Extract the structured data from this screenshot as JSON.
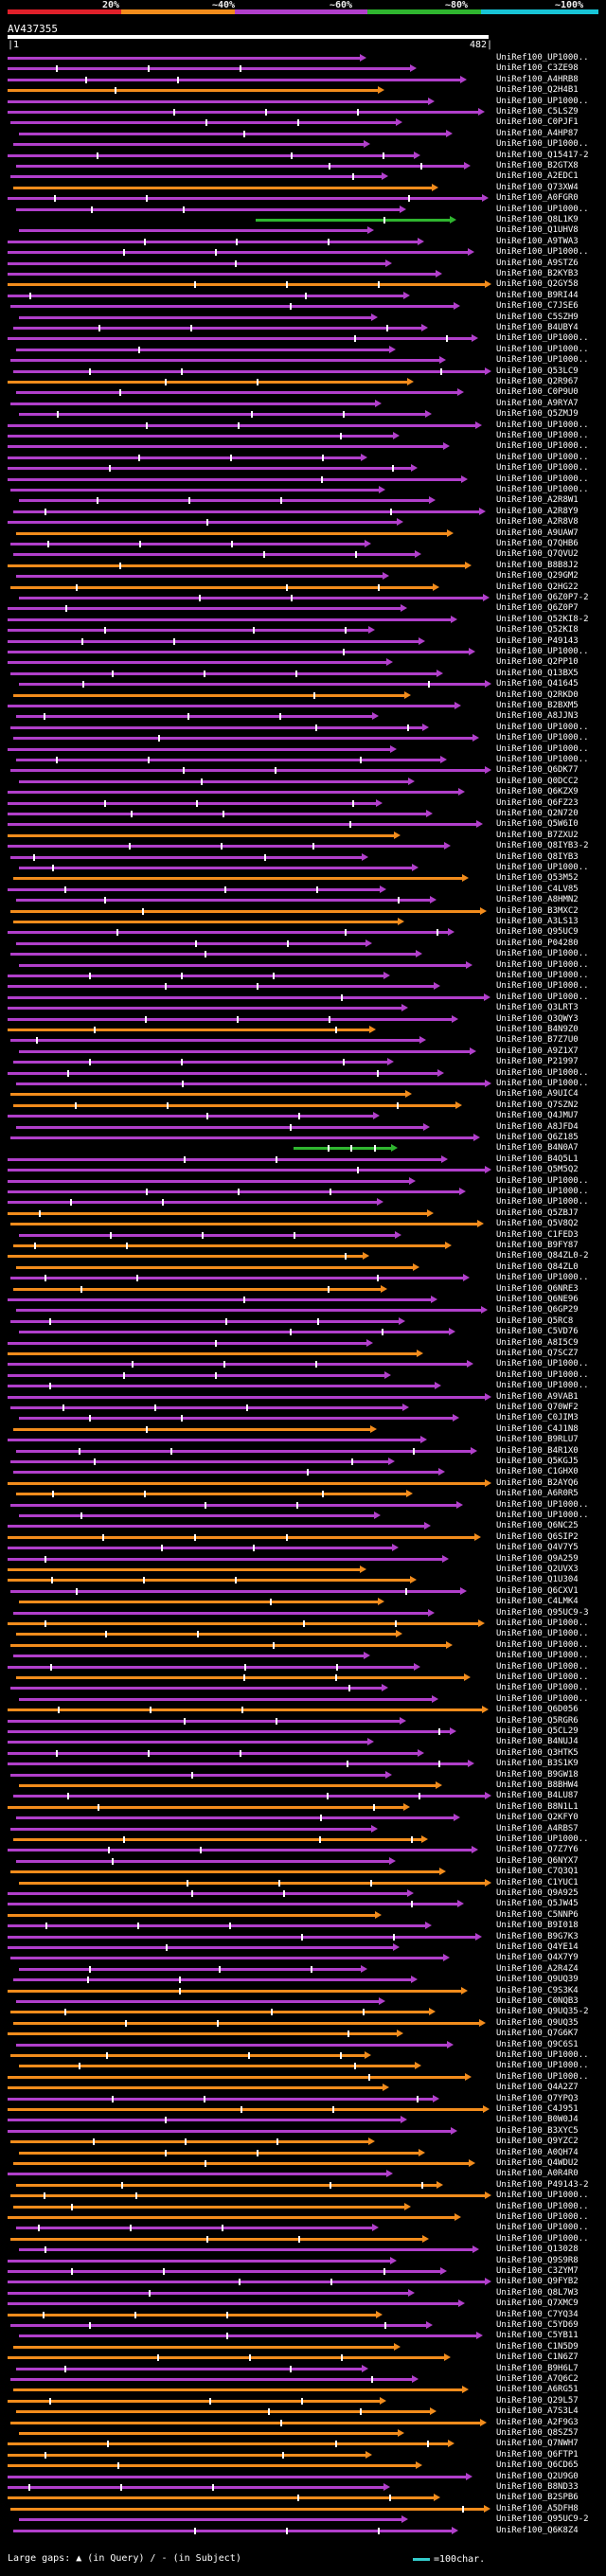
{
  "header": {
    "percent_labels": [
      "20%",
      "~40%",
      "~60%",
      "~80%",
      "~100%"
    ],
    "colors": {
      "red": "#e0202a",
      "orange": "#f28c1c",
      "purple": "#b13fcb",
      "green": "#2fb52f",
      "cyan": "#18c4d6"
    },
    "query_id": "AV437355",
    "coord_start": "|1",
    "coord_end": "482|"
  },
  "hits": [
    {
      "label": "UniRef100_UP1000..",
      "color": "purple"
    },
    {
      "label": "UniRef100_C3ZE98",
      "color": "purple"
    },
    {
      "label": "UniRef100_A4HRB8",
      "color": "purple"
    },
    {
      "label": "UniRef100_Q2H4B1",
      "color": "orange"
    },
    {
      "label": "UniRef100_UP1000..",
      "color": "purple"
    },
    {
      "label": "UniRef100_C5LSZ9",
      "color": "purple"
    },
    {
      "label": "UniRef100_C0PJF1",
      "color": "purple"
    },
    {
      "label": "UniRef100_A4HP87",
      "color": "purple"
    },
    {
      "label": "UniRef100_UP1000..",
      "color": "purple"
    },
    {
      "label": "UniRef100_Q15417-2",
      "color": "purple"
    },
    {
      "label": "UniRef100_B2GTX8",
      "color": "purple"
    },
    {
      "label": "UniRef100_A2EDC1",
      "color": "purple"
    },
    {
      "label": "UniRef100_Q73XW4",
      "color": "orange"
    },
    {
      "label": "UniRef100_A0FGR0",
      "color": "purple"
    },
    {
      "label": "UniRef100_UP1000..",
      "color": "purple"
    },
    {
      "label": "UniRef100_Q8L1K9",
      "color": "green"
    },
    {
      "label": "UniRef100_Q1UHV8",
      "color": "purple"
    },
    {
      "label": "UniRef100_A9TWA3",
      "color": "purple"
    },
    {
      "label": "UniRef100_UP1000..",
      "color": "purple"
    },
    {
      "label": "UniRef100_A9STZ6",
      "color": "purple"
    },
    {
      "label": "UniRef100_B2KYB3",
      "color": "purple"
    },
    {
      "label": "UniRef100_Q2GY58",
      "color": "orange"
    },
    {
      "label": "UniRef100_B9RI44",
      "color": "purple"
    },
    {
      "label": "UniRef100_C7JSE6",
      "color": "purple"
    },
    {
      "label": "UniRef100_C5SZH9",
      "color": "purple"
    },
    {
      "label": "UniRef100_B4UBY4",
      "color": "purple"
    },
    {
      "label": "UniRef100_UP1000..",
      "color": "purple"
    },
    {
      "label": "UniRef100_UP1000..",
      "color": "purple"
    },
    {
      "label": "UniRef100_UP1000..",
      "color": "purple"
    },
    {
      "label": "UniRef100_Q53LC9",
      "color": "purple"
    },
    {
      "label": "UniRef100_Q2R967",
      "color": "orange"
    },
    {
      "label": "UniRef100_C0P9U0",
      "color": "purple"
    },
    {
      "label": "UniRef100_A9RYA7",
      "color": "purple"
    },
    {
      "label": "UniRef100_Q5ZMJ9",
      "color": "purple"
    },
    {
      "label": "UniRef100_UP1000..",
      "color": "purple"
    },
    {
      "label": "UniRef100_UP1000..",
      "color": "purple"
    },
    {
      "label": "UniRef100_UP1000..",
      "color": "purple"
    },
    {
      "label": "UniRef100_UP1000..",
      "color": "purple"
    },
    {
      "label": "UniRef100_UP1000..",
      "color": "purple"
    },
    {
      "label": "UniRef100_UP1000..",
      "color": "purple"
    },
    {
      "label": "UniRef100_UP1000..",
      "color": "purple"
    },
    {
      "label": "UniRef100_A2R8W1",
      "color": "purple"
    },
    {
      "label": "UniRef100_A2R8Y9",
      "color": "purple"
    },
    {
      "label": "UniRef100_A2R8V8",
      "color": "purple"
    },
    {
      "label": "UniRef100_A9UAW7",
      "color": "orange"
    },
    {
      "label": "UniRef100_Q7QHB6",
      "color": "purple"
    },
    {
      "label": "UniRef100_Q7QVU2",
      "color": "purple"
    },
    {
      "label": "UniRef100_B8B8J2",
      "color": "orange"
    },
    {
      "label": "UniRef100_Q29GM2",
      "color": "purple"
    },
    {
      "label": "UniRef100_Q2HG22",
      "color": "orange"
    },
    {
      "label": "UniRef100_Q6Z0P7-2",
      "color": "purple"
    },
    {
      "label": "UniRef100_Q6Z0P7",
      "color": "purple"
    },
    {
      "label": "UniRef100_Q52KI8-2",
      "color": "purple"
    },
    {
      "label": "UniRef100_Q52KI8",
      "color": "purple"
    },
    {
      "label": "UniRef100_P49143",
      "color": "purple"
    },
    {
      "label": "UniRef100_UP1000..",
      "color": "purple"
    },
    {
      "label": "UniRef100_Q2PP10",
      "color": "purple"
    },
    {
      "label": "UniRef100_Q13BX5",
      "color": "purple"
    },
    {
      "label": "UniRef100_Q41645",
      "color": "purple"
    },
    {
      "label": "UniRef100_Q2RKD0",
      "color": "orange"
    },
    {
      "label": "UniRef100_B2BXM5",
      "color": "purple"
    },
    {
      "label": "UniRef100_A8JJN3",
      "color": "purple"
    },
    {
      "label": "UniRef100_UP1000..",
      "color": "purple"
    },
    {
      "label": "UniRef100_UP1000..",
      "color": "purple"
    },
    {
      "label": "UniRef100_UP1000..",
      "color": "purple"
    },
    {
      "label": "UniRef100_UP1000..",
      "color": "purple"
    },
    {
      "label": "UniRef100_Q6DK77",
      "color": "purple"
    },
    {
      "label": "UniRef100_Q0DCC2",
      "color": "purple"
    },
    {
      "label": "UniRef100_Q6KZX9",
      "color": "purple"
    },
    {
      "label": "UniRef100_Q6FZ23",
      "color": "purple"
    },
    {
      "label": "UniRef100_Q2N720",
      "color": "purple"
    },
    {
      "label": "UniRef100_Q5W6I0",
      "color": "purple"
    },
    {
      "label": "UniRef100_B7ZXU2",
      "color": "orange"
    },
    {
      "label": "UniRef100_Q8IYB3-2",
      "color": "purple"
    },
    {
      "label": "UniRef100_Q8IYB3",
      "color": "purple"
    },
    {
      "label": "UniRef100_UP1000..",
      "color": "purple"
    },
    {
      "label": "UniRef100_Q53M52",
      "color": "orange"
    },
    {
      "label": "UniRef100_C4LV85",
      "color": "purple"
    },
    {
      "label": "UniRef100_A8HMN2",
      "color": "purple"
    },
    {
      "label": "UniRef100_B3MXC2",
      "color": "orange"
    },
    {
      "label": "UniRef100_A3LS13",
      "color": "orange"
    },
    {
      "label": "UniRef100_Q95UC9",
      "color": "purple"
    },
    {
      "label": "UniRef100_P04280",
      "color": "purple"
    },
    {
      "label": "UniRef100_UP1000..",
      "color": "purple"
    },
    {
      "label": "UniRef100_UP1000..",
      "color": "purple"
    },
    {
      "label": "UniRef100_UP1000..",
      "color": "purple"
    },
    {
      "label": "UniRef100_UP1000..",
      "color": "purple"
    },
    {
      "label": "UniRef100_UP1000..",
      "color": "purple"
    },
    {
      "label": "UniRef100_Q3LRT3",
      "color": "purple"
    },
    {
      "label": "UniRef100_Q3QWY3",
      "color": "purple"
    },
    {
      "label": "UniRef100_B4N9Z0",
      "color": "orange"
    },
    {
      "label": "UniRef100_B7Z7U0",
      "color": "purple"
    },
    {
      "label": "UniRef100_A9Z1X7",
      "color": "purple"
    },
    {
      "label": "UniRef100_P21997",
      "color": "purple"
    },
    {
      "label": "UniRef100_UP1000..",
      "color": "purple"
    },
    {
      "label": "UniRef100_UP1000..",
      "color": "purple"
    },
    {
      "label": "UniRef100_A9UIC4",
      "color": "orange"
    },
    {
      "label": "UniRef100_Q7SZN2",
      "color": "orange"
    },
    {
      "label": "UniRef100_Q4JMU7",
      "color": "purple"
    },
    {
      "label": "UniRef100_A8JFD4",
      "color": "purple"
    },
    {
      "label": "UniRef100_Q6Z185",
      "color": "purple"
    },
    {
      "label": "UniRef100_B4N0A7",
      "color": "green"
    },
    {
      "label": "UniRef100_B4Q5L1",
      "color": "purple"
    },
    {
      "label": "UniRef100_Q5M5Q2",
      "color": "purple"
    },
    {
      "label": "UniRef100_UP1000..",
      "color": "purple"
    },
    {
      "label": "UniRef100_UP1000..",
      "color": "purple"
    },
    {
      "label": "UniRef100_UP1000..",
      "color": "purple"
    },
    {
      "label": "UniRef100_Q5ZBJ7",
      "color": "orange"
    },
    {
      "label": "UniRef100_Q5V8Q2",
      "color": "orange"
    },
    {
      "label": "UniRef100_C1FED3",
      "color": "purple"
    },
    {
      "label": "UniRef100_B9FY87",
      "color": "orange"
    },
    {
      "label": "UniRef100_Q84ZL0-2",
      "color": "orange"
    },
    {
      "label": "UniRef100_Q84ZL0",
      "color": "orange"
    },
    {
      "label": "UniRef100_UP1000..",
      "color": "purple"
    },
    {
      "label": "UniRef100_Q6NRE3",
      "color": "orange"
    },
    {
      "label": "UniRef100_Q6NE96",
      "color": "purple"
    },
    {
      "label": "UniRef100_Q6GP29",
      "color": "purple"
    },
    {
      "label": "UniRef100_Q5RC8",
      "color": "purple"
    },
    {
      "label": "UniRef100_C5VD76",
      "color": "purple"
    },
    {
      "label": "UniRef100_A8I5C9",
      "color": "purple"
    },
    {
      "label": "UniRef100_Q7SCZ7",
      "color": "orange"
    },
    {
      "label": "UniRef100_UP1000..",
      "color": "purple"
    },
    {
      "label": "UniRef100_UP1000..",
      "color": "purple"
    },
    {
      "label": "UniRef100_UP1000..",
      "color": "purple"
    },
    {
      "label": "UniRef100_A9VAB1",
      "color": "purple"
    },
    {
      "label": "UniRef100_Q70WF2",
      "color": "purple"
    },
    {
      "label": "UniRef100_C0JIM3",
      "color": "purple"
    },
    {
      "label": "UniRef100_C4J1N8",
      "color": "orange"
    },
    {
      "label": "UniRef100_B9RLU7",
      "color": "purple"
    },
    {
      "label": "UniRef100_B4R1X0",
      "color": "purple"
    },
    {
      "label": "UniRef100_Q5KGJ5",
      "color": "purple"
    },
    {
      "label": "UniRef100_C1GHX0",
      "color": "purple"
    },
    {
      "label": "UniRef100_B2AYQ6",
      "color": "orange"
    },
    {
      "label": "UniRef100_A6R0R5",
      "color": "orange"
    },
    {
      "label": "UniRef100_UP1000..",
      "color": "purple"
    },
    {
      "label": "UniRef100_UP1000..",
      "color": "purple"
    },
    {
      "label": "UniRef100_Q6NC25",
      "color": "purple"
    },
    {
      "label": "UniRef100_Q6SIP2",
      "color": "orange"
    },
    {
      "label": "UniRef100_Q4V7Y5",
      "color": "purple"
    },
    {
      "label": "UniRef100_Q9A259",
      "color": "purple"
    },
    {
      "label": "UniRef100_Q2UVX3",
      "color": "orange"
    },
    {
      "label": "UniRef100_Q1U304",
      "color": "orange"
    },
    {
      "label": "UniRef100_Q6CXV1",
      "color": "purple"
    },
    {
      "label": "UniRef100_C4LMK4",
      "color": "orange"
    },
    {
      "label": "UniRef100_Q95UC9-3",
      "color": "purple"
    },
    {
      "label": "UniRef100_UP1000..",
      "color": "orange"
    },
    {
      "label": "UniRef100_UP1000..",
      "color": "orange"
    },
    {
      "label": "UniRef100_UP1000..",
      "color": "orange"
    },
    {
      "label": "UniRef100_UP1000..",
      "color": "purple"
    },
    {
      "label": "UniRef100_UP1000..",
      "color": "purple"
    },
    {
      "label": "UniRef100_UP1000..",
      "color": "orange"
    },
    {
      "label": "UniRef100_UP1000..",
      "color": "purple"
    },
    {
      "label": "UniRef100_UP1000..",
      "color": "purple"
    },
    {
      "label": "UniRef100_Q6D056",
      "color": "orange"
    },
    {
      "label": "UniRef100_Q5RGR6",
      "color": "purple"
    },
    {
      "label": "UniRef100_Q5CL29",
      "color": "purple"
    },
    {
      "label": "UniRef100_B4NUJ4",
      "color": "purple"
    },
    {
      "label": "UniRef100_Q3HTK5",
      "color": "purple"
    },
    {
      "label": "UniRef100_B3S1K9",
      "color": "purple"
    },
    {
      "label": "UniRef100_B9GW18",
      "color": "purple"
    },
    {
      "label": "UniRef100_B8BHW4",
      "color": "orange"
    },
    {
      "label": "UniRef100_B4LU87",
      "color": "purple"
    },
    {
      "label": "UniRef100_B8N1L1",
      "color": "orange"
    },
    {
      "label": "UniRef100_Q2KFY0",
      "color": "purple"
    },
    {
      "label": "UniRef100_A4RBS7",
      "color": "purple"
    },
    {
      "label": "UniRef100_UP1000..",
      "color": "orange"
    },
    {
      "label": "UniRef100_Q7Z7Y6",
      "color": "purple"
    },
    {
      "label": "UniRef100_Q6NYX7",
      "color": "purple"
    },
    {
      "label": "UniRef100_C7Q3Q1",
      "color": "orange"
    },
    {
      "label": "UniRef100_C1YUC1",
      "color": "orange"
    },
    {
      "label": "UniRef100_Q9A925",
      "color": "purple"
    },
    {
      "label": "UniRef100_Q5JW45",
      "color": "purple"
    },
    {
      "label": "UniRef100_C5NNP6",
      "color": "orange"
    },
    {
      "label": "UniRef100_B9I018",
      "color": "purple"
    },
    {
      "label": "UniRef100_B9G7K3",
      "color": "purple"
    },
    {
      "label": "UniRef100_Q4YE14",
      "color": "purple"
    },
    {
      "label": "UniRef100_Q4X7Y9",
      "color": "purple"
    },
    {
      "label": "UniRef100_A2R4Z4",
      "color": "purple"
    },
    {
      "label": "UniRef100_Q9UQ39",
      "color": "purple"
    },
    {
      "label": "UniRef100_C9S3K4",
      "color": "orange"
    },
    {
      "label": "UniRef100_C0NQB3",
      "color": "purple"
    },
    {
      "label": "UniRef100_Q9UQ35-2",
      "color": "orange"
    },
    {
      "label": "UniRef100_Q9UQ35",
      "color": "orange"
    },
    {
      "label": "UniRef100_Q7G6K7",
      "color": "orange"
    },
    {
      "label": "UniRef100_Q9C6S1",
      "color": "purple"
    },
    {
      "label": "UniRef100_UP1000..",
      "color": "orange"
    },
    {
      "label": "UniRef100_UP1000..",
      "color": "orange"
    },
    {
      "label": "UniRef100_UP1000..",
      "color": "orange"
    },
    {
      "label": "UniRef100_Q4A2Z7",
      "color": "orange"
    },
    {
      "label": "UniRef100_Q7YPQ3",
      "color": "purple"
    },
    {
      "label": "UniRef100_C4J951",
      "color": "orange"
    },
    {
      "label": "UniRef100_B0W0J4",
      "color": "purple"
    },
    {
      "label": "UniRef100_B3XYC5",
      "color": "purple"
    },
    {
      "label": "UniRef100_Q9YZC2",
      "color": "orange"
    },
    {
      "label": "UniRef100_A0QH74",
      "color": "orange"
    },
    {
      "label": "UniRef100_Q4WDU2",
      "color": "orange"
    },
    {
      "label": "UniRef100_A0R4R0",
      "color": "purple"
    },
    {
      "label": "UniRef100_P49143-2",
      "color": "orange"
    },
    {
      "label": "UniRef100_UP1000..",
      "color": "orange"
    },
    {
      "label": "UniRef100_UP1000..",
      "color": "orange"
    },
    {
      "label": "UniRef100_UP1000..",
      "color": "orange"
    },
    {
      "label": "UniRef100_UP1000..",
      "color": "purple"
    },
    {
      "label": "UniRef100_UP1000..",
      "color": "orange"
    },
    {
      "label": "UniRef100_Q13028",
      "color": "purple"
    },
    {
      "label": "UniRef100_Q9S9R8",
      "color": "purple"
    },
    {
      "label": "UniRef100_C3ZYM7",
      "color": "purple"
    },
    {
      "label": "UniRef100_Q9FYB2",
      "color": "purple"
    },
    {
      "label": "UniRef100_Q8L7W3",
      "color": "purple"
    },
    {
      "label": "UniRef100_Q7XMC9",
      "color": "purple"
    },
    {
      "label": "UniRef100_C7YQ34",
      "color": "orange"
    },
    {
      "label": "UniRef100_C5YD69",
      "color": "purple"
    },
    {
      "label": "UniRef100_C5YB11",
      "color": "purple"
    },
    {
      "label": "UniRef100_C1N5D9",
      "color": "orange"
    },
    {
      "label": "UniRef100_C1N6Z7",
      "color": "orange"
    },
    {
      "label": "UniRef100_B9H6L7",
      "color": "purple"
    },
    {
      "label": "UniRef100_A7Q6C2",
      "color": "purple"
    },
    {
      "label": "UniRef100_A6RG51",
      "color": "orange"
    },
    {
      "label": "UniRef100_Q29L57",
      "color": "orange"
    },
    {
      "label": "UniRef100_A7S3L4",
      "color": "orange"
    },
    {
      "label": "UniRef100_A2F9G3",
      "color": "orange"
    },
    {
      "label": "UniRef100_Q8SZ57",
      "color": "orange"
    },
    {
      "label": "UniRef100_Q7NWH7",
      "color": "orange"
    },
    {
      "label": "UniRef100_Q6FTP1",
      "color": "orange"
    },
    {
      "label": "UniRef100_Q6CD65",
      "color": "orange"
    },
    {
      "label": "UniRef100_Q2U9G0",
      "color": "purple"
    },
    {
      "label": "UniRef100_B8ND33",
      "color": "purple"
    },
    {
      "label": "UniRef100_B2SPB6",
      "color": "orange"
    },
    {
      "label": "UniRef100_A5DFH8",
      "color": "orange"
    },
    {
      "label": "UniRef100_Q95UC9-2",
      "color": "purple"
    },
    {
      "label": "UniRef100_Q6K8Z4",
      "color": "purple"
    }
  ],
  "footer": {
    "large_gaps_text": "Large gaps: ▲ (in Query) / - (in Subject)",
    "scale_text": "=100char."
  }
}
